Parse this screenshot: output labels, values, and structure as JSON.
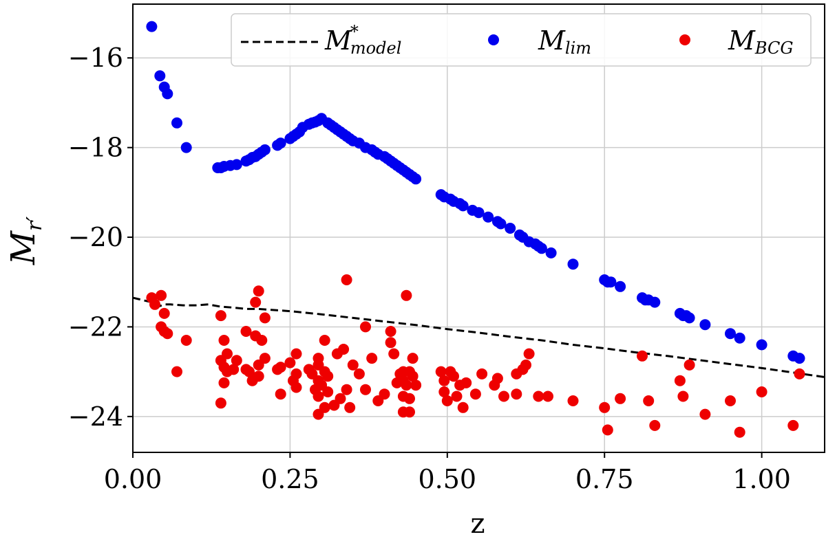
{
  "chart_data": {
    "type": "scatter",
    "title": "",
    "xlabel": "z",
    "ylabel": {
      "main": "M",
      "sub": "r′"
    },
    "xlim": [
      0.0,
      1.1
    ],
    "ylim": [
      -24.8,
      -14.8
    ],
    "y_inverted": true,
    "grid": true,
    "legend_position": "top-right",
    "xticks": [
      0.0,
      0.25,
      0.5,
      0.75,
      1.0
    ],
    "xtick_labels": [
      "0.00",
      "0.25",
      "0.50",
      "0.75",
      "1.00"
    ],
    "yticks": [
      -16,
      -18,
      -20,
      -22,
      -24
    ],
    "ytick_labels": [
      "−16",
      "−18",
      "−20",
      "−22",
      "−24"
    ],
    "series": [
      {
        "name": "M*model",
        "legend": {
          "main": "M",
          "sup": "*",
          "sub": "model"
        },
        "kind": "line",
        "style": "dashed",
        "color": "#000000",
        "points": [
          [
            0.0,
            -21.35
          ],
          [
            0.03,
            -21.45
          ],
          [
            0.04,
            -21.55
          ],
          [
            0.05,
            -21.5
          ],
          [
            0.06,
            -21.5
          ],
          [
            0.08,
            -21.52
          ],
          [
            0.1,
            -21.52
          ],
          [
            0.12,
            -21.5
          ],
          [
            0.14,
            -21.55
          ],
          [
            0.16,
            -21.57
          ],
          [
            0.18,
            -21.6
          ],
          [
            0.2,
            -21.6
          ],
          [
            0.25,
            -21.65
          ],
          [
            0.3,
            -21.72
          ],
          [
            0.35,
            -21.8
          ],
          [
            0.4,
            -21.88
          ],
          [
            0.45,
            -21.96
          ],
          [
            0.5,
            -22.05
          ],
          [
            0.55,
            -22.13
          ],
          [
            0.6,
            -22.22
          ],
          [
            0.65,
            -22.3
          ],
          [
            0.7,
            -22.4
          ],
          [
            0.75,
            -22.48
          ],
          [
            0.8,
            -22.57
          ],
          [
            0.85,
            -22.65
          ],
          [
            0.9,
            -22.74
          ],
          [
            0.95,
            -22.83
          ],
          [
            1.0,
            -22.92
          ],
          [
            1.05,
            -23.02
          ],
          [
            1.1,
            -23.12
          ]
        ]
      },
      {
        "name": "Mlim",
        "legend": {
          "main": "M",
          "sup": "",
          "sub": "lim"
        },
        "kind": "scatter",
        "color": "#0000ee",
        "points": [
          [
            0.03,
            -15.3
          ],
          [
            0.043,
            -16.4
          ],
          [
            0.05,
            -16.65
          ],
          [
            0.055,
            -16.8
          ],
          [
            0.07,
            -17.45
          ],
          [
            0.085,
            -18.0
          ],
          [
            0.135,
            -18.45
          ],
          [
            0.14,
            -18.45
          ],
          [
            0.145,
            -18.42
          ],
          [
            0.155,
            -18.4
          ],
          [
            0.165,
            -18.38
          ],
          [
            0.18,
            -18.3
          ],
          [
            0.185,
            -18.27
          ],
          [
            0.19,
            -18.22
          ],
          [
            0.195,
            -18.2
          ],
          [
            0.2,
            -18.15
          ],
          [
            0.205,
            -18.1
          ],
          [
            0.21,
            -18.05
          ],
          [
            0.23,
            -17.95
          ],
          [
            0.235,
            -17.9
          ],
          [
            0.25,
            -17.8
          ],
          [
            0.255,
            -17.75
          ],
          [
            0.26,
            -17.7
          ],
          [
            0.265,
            -17.65
          ],
          [
            0.27,
            -17.55
          ],
          [
            0.28,
            -17.48
          ],
          [
            0.285,
            -17.45
          ],
          [
            0.29,
            -17.43
          ],
          [
            0.295,
            -17.4
          ],
          [
            0.3,
            -17.35
          ],
          [
            0.31,
            -17.45
          ],
          [
            0.315,
            -17.5
          ],
          [
            0.32,
            -17.55
          ],
          [
            0.325,
            -17.6
          ],
          [
            0.33,
            -17.65
          ],
          [
            0.335,
            -17.7
          ],
          [
            0.34,
            -17.75
          ],
          [
            0.345,
            -17.8
          ],
          [
            0.35,
            -17.85
          ],
          [
            0.36,
            -17.9
          ],
          [
            0.37,
            -18.0
          ],
          [
            0.38,
            -18.05
          ],
          [
            0.385,
            -18.1
          ],
          [
            0.39,
            -18.15
          ],
          [
            0.4,
            -18.2
          ],
          [
            0.405,
            -18.25
          ],
          [
            0.41,
            -18.3
          ],
          [
            0.415,
            -18.35
          ],
          [
            0.42,
            -18.4
          ],
          [
            0.425,
            -18.45
          ],
          [
            0.43,
            -18.5
          ],
          [
            0.435,
            -18.55
          ],
          [
            0.44,
            -18.6
          ],
          [
            0.445,
            -18.65
          ],
          [
            0.45,
            -18.7
          ],
          [
            0.49,
            -19.05
          ],
          [
            0.495,
            -19.1
          ],
          [
            0.505,
            -19.15
          ],
          [
            0.51,
            -19.2
          ],
          [
            0.52,
            -19.25
          ],
          [
            0.525,
            -19.3
          ],
          [
            0.54,
            -19.4
          ],
          [
            0.55,
            -19.45
          ],
          [
            0.565,
            -19.55
          ],
          [
            0.58,
            -19.65
          ],
          [
            0.585,
            -19.7
          ],
          [
            0.6,
            -19.8
          ],
          [
            0.615,
            -19.95
          ],
          [
            0.62,
            -20.0
          ],
          [
            0.63,
            -20.1
          ],
          [
            0.64,
            -20.15
          ],
          [
            0.645,
            -20.2
          ],
          [
            0.65,
            -20.25
          ],
          [
            0.665,
            -20.35
          ],
          [
            0.7,
            -20.6
          ],
          [
            0.75,
            -20.95
          ],
          [
            0.755,
            -21.0
          ],
          [
            0.76,
            -21.0
          ],
          [
            0.775,
            -21.1
          ],
          [
            0.81,
            -21.35
          ],
          [
            0.815,
            -21.4
          ],
          [
            0.82,
            -21.4
          ],
          [
            0.83,
            -21.45
          ],
          [
            0.87,
            -21.7
          ],
          [
            0.875,
            -21.75
          ],
          [
            0.88,
            -21.75
          ],
          [
            0.885,
            -21.8
          ],
          [
            0.91,
            -21.95
          ],
          [
            0.95,
            -22.15
          ],
          [
            0.965,
            -22.25
          ],
          [
            1.0,
            -22.4
          ],
          [
            1.05,
            -22.65
          ],
          [
            1.06,
            -22.7
          ]
        ]
      },
      {
        "name": "MBCG",
        "legend": {
          "main": "M",
          "sup": "",
          "sub": "BCG"
        },
        "kind": "scatter",
        "color": "#ee0000",
        "points": [
          [
            0.03,
            -21.35
          ],
          [
            0.045,
            -21.3
          ],
          [
            0.035,
            -21.5
          ],
          [
            0.045,
            -22.0
          ],
          [
            0.05,
            -22.1
          ],
          [
            0.055,
            -22.15
          ],
          [
            0.05,
            -21.7
          ],
          [
            0.07,
            -23.0
          ],
          [
            0.085,
            -22.3
          ],
          [
            0.14,
            -21.75
          ],
          [
            0.145,
            -22.3
          ],
          [
            0.14,
            -22.75
          ],
          [
            0.145,
            -22.9
          ],
          [
            0.15,
            -23.0
          ],
          [
            0.145,
            -23.25
          ],
          [
            0.14,
            -23.7
          ],
          [
            0.15,
            -22.6
          ],
          [
            0.16,
            -22.95
          ],
          [
            0.165,
            -22.75
          ],
          [
            0.18,
            -22.1
          ],
          [
            0.18,
            -22.95
          ],
          [
            0.185,
            -23.0
          ],
          [
            0.19,
            -23.2
          ],
          [
            0.195,
            -22.2
          ],
          [
            0.195,
            -21.45
          ],
          [
            0.2,
            -21.2
          ],
          [
            0.2,
            -22.85
          ],
          [
            0.205,
            -22.3
          ],
          [
            0.21,
            -22.7
          ],
          [
            0.21,
            -21.8
          ],
          [
            0.2,
            -23.1
          ],
          [
            0.23,
            -22.95
          ],
          [
            0.235,
            -22.9
          ],
          [
            0.235,
            -23.5
          ],
          [
            0.25,
            -22.8
          ],
          [
            0.255,
            -23.2
          ],
          [
            0.26,
            -23.35
          ],
          [
            0.26,
            -22.6
          ],
          [
            0.26,
            -23.05
          ],
          [
            0.28,
            -22.95
          ],
          [
            0.285,
            -23.05
          ],
          [
            0.29,
            -23.4
          ],
          [
            0.295,
            -22.7
          ],
          [
            0.295,
            -22.85
          ],
          [
            0.295,
            -23.2
          ],
          [
            0.295,
            -23.55
          ],
          [
            0.295,
            -23.95
          ],
          [
            0.3,
            -23.3
          ],
          [
            0.305,
            -22.3
          ],
          [
            0.305,
            -23.0
          ],
          [
            0.305,
            -23.8
          ],
          [
            0.31,
            -23.1
          ],
          [
            0.31,
            -23.45
          ],
          [
            0.32,
            -23.75
          ],
          [
            0.325,
            -22.6
          ],
          [
            0.33,
            -23.6
          ],
          [
            0.335,
            -22.5
          ],
          [
            0.34,
            -20.95
          ],
          [
            0.34,
            -23.4
          ],
          [
            0.345,
            -23.8
          ],
          [
            0.35,
            -22.85
          ],
          [
            0.36,
            -23.05
          ],
          [
            0.37,
            -22.0
          ],
          [
            0.37,
            -23.4
          ],
          [
            0.38,
            -22.7
          ],
          [
            0.39,
            -23.65
          ],
          [
            0.4,
            -23.5
          ],
          [
            0.41,
            -22.1
          ],
          [
            0.41,
            -22.35
          ],
          [
            0.415,
            -22.6
          ],
          [
            0.42,
            -23.25
          ],
          [
            0.425,
            -23.05
          ],
          [
            0.43,
            -23.0
          ],
          [
            0.43,
            -23.2
          ],
          [
            0.43,
            -23.55
          ],
          [
            0.43,
            -23.9
          ],
          [
            0.435,
            -21.3
          ],
          [
            0.435,
            -23.3
          ],
          [
            0.44,
            -23.0
          ],
          [
            0.44,
            -23.6
          ],
          [
            0.44,
            -23.9
          ],
          [
            0.445,
            -23.1
          ],
          [
            0.445,
            -22.7
          ],
          [
            0.45,
            -23.3
          ],
          [
            0.49,
            -23.0
          ],
          [
            0.495,
            -23.2
          ],
          [
            0.495,
            -23.45
          ],
          [
            0.5,
            -23.65
          ],
          [
            0.505,
            -23.0
          ],
          [
            0.51,
            -23.1
          ],
          [
            0.515,
            -23.55
          ],
          [
            0.52,
            -23.3
          ],
          [
            0.525,
            -23.8
          ],
          [
            0.53,
            -23.25
          ],
          [
            0.545,
            -23.5
          ],
          [
            0.555,
            -23.05
          ],
          [
            0.575,
            -23.3
          ],
          [
            0.58,
            -23.15
          ],
          [
            0.59,
            -23.55
          ],
          [
            0.61,
            -23.05
          ],
          [
            0.61,
            -23.5
          ],
          [
            0.62,
            -22.95
          ],
          [
            0.625,
            -22.85
          ],
          [
            0.63,
            -22.6
          ],
          [
            0.645,
            -23.55
          ],
          [
            0.66,
            -23.55
          ],
          [
            0.7,
            -23.65
          ],
          [
            0.75,
            -23.8
          ],
          [
            0.755,
            -24.3
          ],
          [
            0.775,
            -23.6
          ],
          [
            0.81,
            -22.65
          ],
          [
            0.82,
            -23.65
          ],
          [
            0.83,
            -24.2
          ],
          [
            0.87,
            -23.2
          ],
          [
            0.875,
            -23.55
          ],
          [
            0.885,
            -22.85
          ],
          [
            0.91,
            -23.95
          ],
          [
            0.95,
            -23.65
          ],
          [
            0.965,
            -24.35
          ],
          [
            1.0,
            -23.45
          ],
          [
            1.05,
            -24.2
          ],
          [
            1.06,
            -23.05
          ]
        ]
      }
    ]
  }
}
